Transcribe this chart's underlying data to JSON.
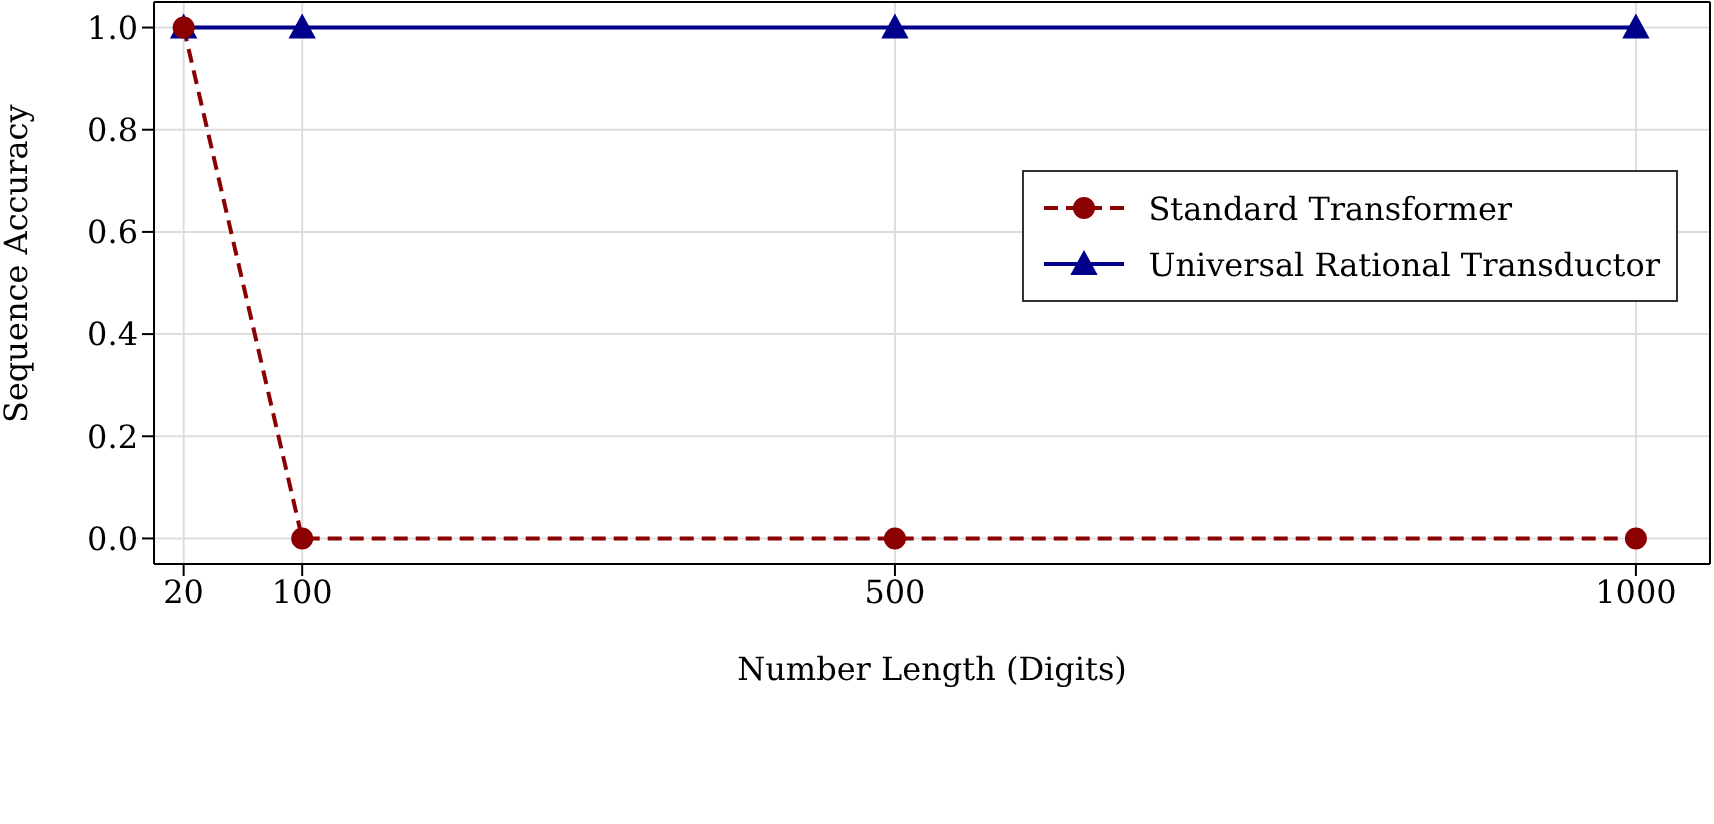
{
  "chart_data": {
    "type": "line",
    "xlabel": "Number Length (Digits)",
    "ylabel": "Sequence Accuracy",
    "x": [
      20,
      100,
      500,
      1000
    ],
    "series": [
      {
        "name": "Standard Transformer",
        "color": "#8b0000",
        "values": [
          1.0,
          0.0,
          0.0,
          0.0
        ],
        "marker": "circle",
        "line_style": "dashed"
      },
      {
        "name": "Universal Rational Transductor",
        "color": "#00008b",
        "values": [
          1.0,
          1.0,
          1.0,
          1.0
        ],
        "marker": "triangle",
        "line_style": "solid"
      }
    ],
    "xlim": [
      0,
      1050
    ],
    "xticks": [
      20,
      100,
      500,
      1000
    ],
    "ylim": [
      -0.05,
      1.05
    ],
    "yticks": [
      {
        "value": 0,
        "label": "0.0"
      },
      {
        "value": 0.2,
        "label": "0.2"
      },
      {
        "value": 0.4,
        "label": "0.4"
      },
      {
        "value": 0.6,
        "label": "0.6"
      },
      {
        "value": 0.8,
        "label": "0.8"
      },
      {
        "value": 1,
        "label": "1.0"
      }
    ],
    "grid": true,
    "legend": "upper right"
  }
}
